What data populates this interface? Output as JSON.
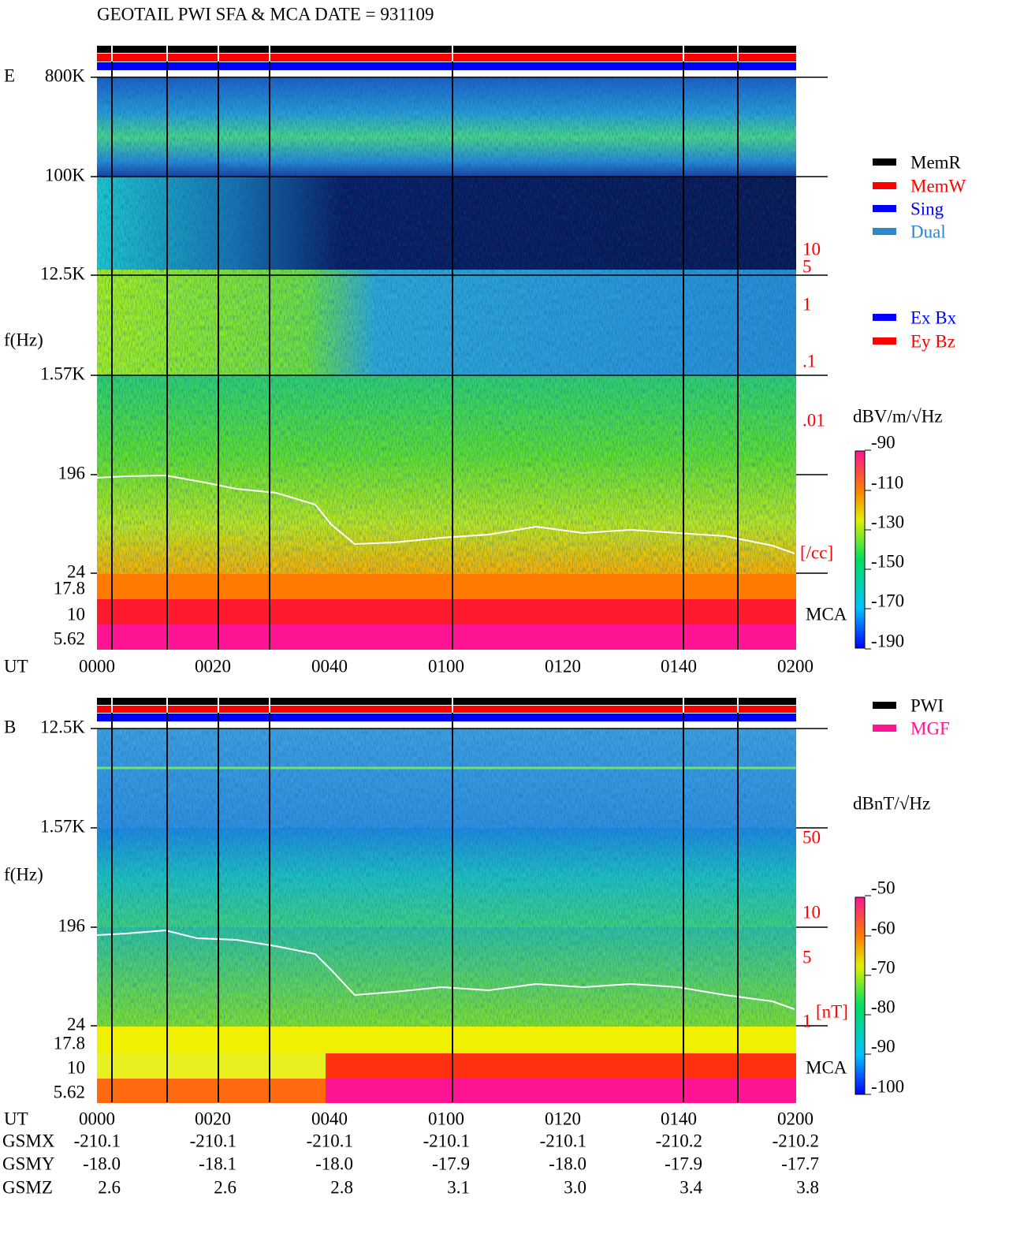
{
  "header": {
    "title": "GEOTAIL  PWI SFA & MCA   DATE = 931109"
  },
  "panels": [
    {
      "label": "E",
      "y_axis_title": "f(Hz)",
      "frequency_labels": [
        "800K",
        "100K",
        "12.5K",
        "1.57K",
        "196",
        "24",
        "17.8",
        "10",
        "5.62"
      ],
      "scale_labels": [
        "10",
        "5",
        "1",
        ".1",
        ".01"
      ],
      "scale_unit": "[/cc]",
      "mca_label": "MCA",
      "colorbar": {
        "title": "dBV/m/√Hz",
        "ticks": [
          "-90",
          "-110",
          "-130",
          "-150",
          "-170",
          "-190"
        ]
      },
      "ut_label": "UT",
      "ut_ticks": [
        "0000",
        "0020",
        "0040",
        "0100",
        "0120",
        "0140",
        "0200"
      ]
    },
    {
      "label": "B",
      "y_axis_title": "f(Hz)",
      "frequency_labels": [
        "12.5K",
        "1.57K",
        "196",
        "24",
        "17.8",
        "10",
        "5.62"
      ],
      "scale_labels": [
        "50",
        "10",
        "5",
        "1"
      ],
      "scale_unit": "[nT]",
      "mca_label": "MCA",
      "colorbar": {
        "title": "dBnT/√Hz",
        "ticks": [
          "-50",
          "-60",
          "-70",
          "-80",
          "-90",
          "-100"
        ]
      },
      "ut_label": "UT",
      "ut_ticks": [
        "0000",
        "0020",
        "0040",
        "0100",
        "0120",
        "0140",
        "0200"
      ]
    }
  ],
  "legend_mode": [
    {
      "name": "MemR",
      "color": "#000000"
    },
    {
      "name": "MemW",
      "color": "#ff0000"
    },
    {
      "name": "Sing",
      "color": "#0000ff"
    },
    {
      "name": "Dual",
      "color": "#2a8ac8"
    }
  ],
  "legend_components": [
    {
      "name": "Ex Bx",
      "color": "#0000ff"
    },
    {
      "name": "Ey Bz",
      "color": "#ff0000"
    }
  ],
  "legend_source": [
    {
      "name": "PWI",
      "color": "#000000"
    },
    {
      "name": "MGF",
      "color": "#ff1493"
    }
  ],
  "orbit": [
    {
      "label": "GSMX",
      "values": [
        "-210.1",
        "-210.1",
        "-210.1",
        "-210.1",
        "-210.1",
        "-210.2",
        "-210.2"
      ]
    },
    {
      "label": "GSMY",
      "values": [
        "-18.0",
        "-18.1",
        "-18.0",
        "-17.9",
        "-18.0",
        "-17.9",
        "-17.7"
      ]
    },
    {
      "label": "GSMZ",
      "values": [
        "2.6",
        "2.6",
        "2.8",
        "3.1",
        "3.0",
        "3.4",
        "3.8"
      ]
    }
  ]
}
